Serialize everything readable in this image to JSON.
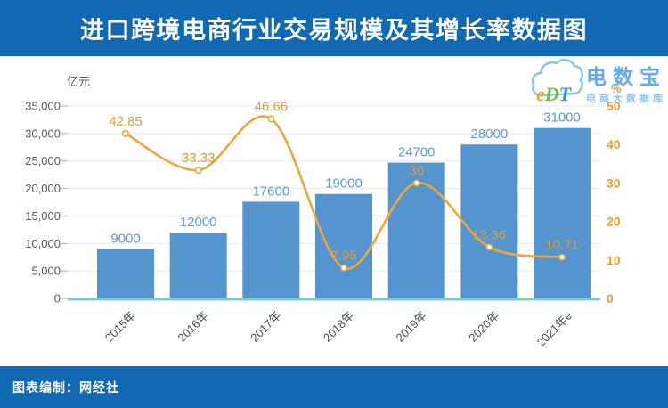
{
  "title": "进口跨境电商行业交易规模及其增长率数据图",
  "footer": {
    "credit": "图表编制：网经社"
  },
  "logo": {
    "monogram": "eDT",
    "monogram_colors": {
      "e": "#F2A71F",
      "D": "#6DBE4B",
      "T": "#3D8EDB"
    },
    "brand": "电数宝",
    "tagline": "电商大数据库",
    "cloud_color": "#8EC1EE"
  },
  "colors": {
    "band_blue": "#1169B3",
    "bar_blue": "#5494CF",
    "bar_label_blue": "#5B9BD5",
    "line_orange": "#EBA63C",
    "line_label_orange": "#E39B35",
    "axis_text_gray": "#595959",
    "x_label_gray": "#4A4A4A",
    "grid_gray": "#E8E8E8",
    "baseline_teal": "#85C3DA",
    "tick_gray": "#B0B0B0"
  },
  "chart_data": {
    "type": "bar",
    "subtype": "bar+line combo, dual axis",
    "categories": [
      "2015年",
      "2016年",
      "2017年",
      "2018年",
      "2019年",
      "2020年",
      "2021年e"
    ],
    "series": [
      {
        "name": "交易规模",
        "type": "bar",
        "axis": "left",
        "values": [
          9000,
          12000,
          17600,
          19000,
          24700,
          28000,
          31000
        ]
      },
      {
        "name": "增长率",
        "type": "line",
        "axis": "right",
        "values": [
          42.85,
          33.33,
          46.66,
          7.95,
          30,
          13.36,
          10.71
        ]
      }
    ],
    "left_axis": {
      "unit": "亿元",
      "min": 0,
      "max": 35000,
      "step": 5000,
      "tick_labels": [
        "0",
        "5,000",
        "10,000",
        "15,000",
        "20,000",
        "25,000",
        "30,000",
        "35,000"
      ]
    },
    "right_axis": {
      "unit": "%",
      "min": 0,
      "max": 50,
      "step": 10,
      "tick_labels": [
        "0",
        "10",
        "20",
        "30",
        "40",
        "50"
      ]
    },
    "grid": true,
    "legend": "none"
  }
}
